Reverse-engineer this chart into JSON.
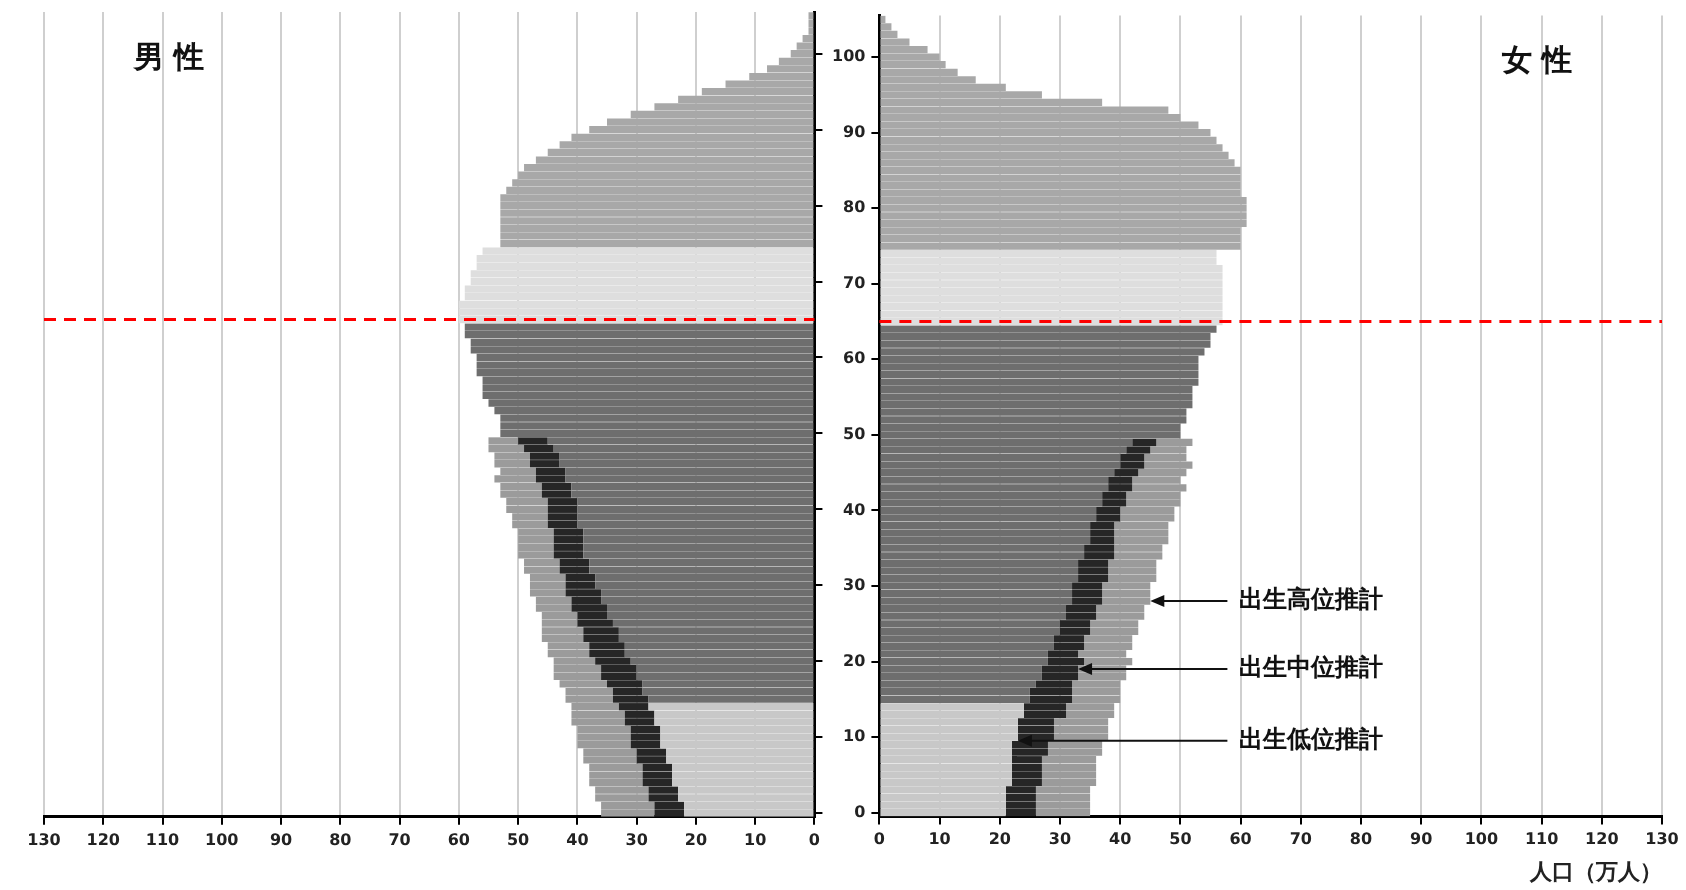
{
  "chart_data": [
    {
      "type": "bar",
      "orientation": "horizontal",
      "stacked": true,
      "title": "男 性",
      "grid": "x",
      "tick_labels": "x",
      "xlim": [
        130,
        0
      ],
      "xticks": [
        130,
        120,
        110,
        100,
        90,
        80,
        70,
        60,
        50,
        40,
        30,
        20,
        10,
        0
      ],
      "ylim": [
        -0.5,
        105.5
      ],
      "yticks": [
        0,
        10,
        20,
        30,
        40,
        50,
        60,
        70,
        80,
        90,
        100
      ],
      "x": [
        0,
        1,
        2,
        3,
        4,
        5,
        6,
        7,
        8,
        9,
        10,
        11,
        12,
        13,
        14,
        15,
        16,
        17,
        18,
        19,
        20,
        21,
        22,
        23,
        24,
        25,
        26,
        27,
        28,
        29,
        30,
        31,
        32,
        33,
        34,
        35,
        36,
        37,
        38,
        39,
        40,
        41,
        42,
        43,
        44,
        45,
        46,
        47,
        48,
        49,
        50,
        51,
        52,
        53,
        54,
        55,
        56,
        57,
        58,
        59,
        60,
        61,
        62,
        63,
        64,
        65,
        66,
        67,
        68,
        69,
        70,
        71,
        72,
        73,
        74,
        75,
        76,
        77,
        78,
        79,
        80,
        81,
        82,
        83,
        84,
        85,
        86,
        87,
        88,
        89,
        90,
        91,
        92,
        93,
        94,
        95,
        96,
        97,
        98,
        99,
        100,
        101,
        102,
        103,
        104,
        105
      ],
      "ref_lines": [
        {
          "axis": "y",
          "value": 65,
          "color": "#ff0000",
          "line_style": "dashed"
        }
      ],
      "series": [
        {
          "values": [
            22,
            22,
            23,
            23,
            24,
            24,
            24,
            25,
            25,
            26,
            26,
            26,
            27,
            27,
            28,
            28,
            29,
            29,
            30,
            30,
            31,
            32,
            32,
            33,
            33,
            34,
            35,
            35,
            36,
            36,
            37,
            37,
            38,
            38,
            39,
            39,
            39,
            39,
            40,
            40,
            40,
            40,
            41,
            41,
            42,
            42,
            43,
            43,
            44,
            45,
            53,
            53,
            53,
            54,
            55,
            56,
            56,
            56,
            57,
            57,
            57,
            58,
            58,
            59,
            59,
            60,
            60,
            60,
            59,
            59,
            58,
            58,
            57,
            57,
            56,
            53,
            53,
            53,
            53,
            53,
            53,
            53,
            52,
            51,
            50,
            49,
            47,
            45,
            43,
            41,
            38,
            35,
            31,
            27,
            23,
            19,
            15,
            11,
            8,
            6,
            4,
            3,
            2,
            1,
            1,
            1
          ],
          "colors": [
            "#c8c8c8",
            "#c8c8c8",
            "#c8c8c8",
            "#c8c8c8",
            "#c8c8c8",
            "#c8c8c8",
            "#c8c8c8",
            "#c8c8c8",
            "#c8c8c8",
            "#c8c8c8",
            "#c8c8c8",
            "#c8c8c8",
            "#c8c8c8",
            "#c8c8c8",
            "#c8c8c8",
            "#6e6e6e",
            "#6e6e6e",
            "#6e6e6e",
            "#6e6e6e",
            "#6e6e6e",
            "#6e6e6e",
            "#6e6e6e",
            "#6e6e6e",
            "#6e6e6e",
            "#6e6e6e",
            "#6e6e6e",
            "#6e6e6e",
            "#6e6e6e",
            "#6e6e6e",
            "#6e6e6e",
            "#6e6e6e",
            "#6e6e6e",
            "#6e6e6e",
            "#6e6e6e",
            "#6e6e6e",
            "#6e6e6e",
            "#6e6e6e",
            "#6e6e6e",
            "#6e6e6e",
            "#6e6e6e",
            "#6e6e6e",
            "#6e6e6e",
            "#6e6e6e",
            "#6e6e6e",
            "#6e6e6e",
            "#6e6e6e",
            "#6e6e6e",
            "#6e6e6e",
            "#6e6e6e",
            "#6e6e6e",
            "#6e6e6e",
            "#6e6e6e",
            "#6e6e6e",
            "#6e6e6e",
            "#6e6e6e",
            "#6e6e6e",
            "#6e6e6e",
            "#6e6e6e",
            "#6e6e6e",
            "#6e6e6e",
            "#6e6e6e",
            "#6e6e6e",
            "#6e6e6e",
            "#6e6e6e",
            "#6e6e6e",
            "#dedede",
            "#dedede",
            "#dedede",
            "#dedede",
            "#dedede",
            "#dedede",
            "#dedede",
            "#dedede",
            "#dedede",
            "#dedede",
            "#a8a8a8",
            "#a8a8a8",
            "#a8a8a8",
            "#a8a8a8",
            "#a8a8a8",
            "#a8a8a8",
            "#a8a8a8",
            "#a8a8a8",
            "#a8a8a8",
            "#a8a8a8",
            "#a8a8a8",
            "#a8a8a8",
            "#a8a8a8",
            "#a8a8a8",
            "#a8a8a8",
            "#a8a8a8",
            "#a8a8a8",
            "#a8a8a8",
            "#a8a8a8",
            "#a8a8a8",
            "#a8a8a8",
            "#a8a8a8",
            "#a8a8a8",
            "#a8a8a8",
            "#a8a8a8",
            "#a8a8a8",
            "#a8a8a8",
            "#a8a8a8",
            "#a8a8a8",
            "#a8a8a8",
            "#a8a8a8"
          ]
        },
        {
          "color": "#262626",
          "x": [
            0,
            1,
            2,
            3,
            4,
            5,
            6,
            7,
            8,
            9,
            10,
            11,
            12,
            13,
            14,
            15,
            16,
            17,
            18,
            19,
            20,
            21,
            22,
            23,
            24,
            25,
            26,
            27,
            28,
            29,
            30,
            31,
            32,
            33,
            34,
            35,
            36,
            37,
            38,
            39,
            40,
            41,
            42,
            43,
            44,
            45,
            46,
            47,
            48,
            49
          ],
          "values": [
            5,
            5,
            5,
            5,
            5,
            5,
            5,
            5,
            5,
            5,
            5,
            5,
            5,
            5,
            5,
            6,
            5,
            6,
            6,
            6,
            6,
            6,
            6,
            6,
            6,
            6,
            5,
            6,
            5,
            6,
            5,
            5,
            5,
            5,
            5,
            5,
            5,
            5,
            5,
            5,
            5,
            5,
            5,
            5,
            5,
            5,
            5,
            5,
            5,
            5
          ]
        },
        {
          "color": "#9b9b9b",
          "x": [
            0,
            1,
            2,
            3,
            4,
            5,
            6,
            7,
            8,
            9,
            10,
            11,
            12,
            13,
            14,
            15,
            16,
            17,
            18,
            19,
            20,
            21,
            22,
            23,
            24,
            25,
            26,
            27,
            28,
            29,
            30,
            31,
            32,
            33,
            34,
            35,
            36,
            37,
            38,
            39,
            40,
            41,
            42,
            43,
            44,
            45,
            46,
            47,
            48,
            49
          ],
          "values": [
            9,
            9,
            9,
            9,
            9,
            9,
            9,
            9,
            9,
            9,
            9,
            9,
            9,
            9,
            8,
            8,
            8,
            8,
            8,
            8,
            7,
            7,
            7,
            7,
            7,
            6,
            6,
            6,
            6,
            6,
            6,
            6,
            6,
            6,
            6,
            6,
            6,
            6,
            6,
            6,
            7,
            7,
            7,
            7,
            7,
            6,
            6,
            6,
            6,
            5
          ]
        }
      ]
    },
    {
      "type": "bar",
      "orientation": "horizontal",
      "stacked": true,
      "title": "女 性",
      "grid": "x",
      "xlabel": "人口（万人）",
      "xlim": [
        0,
        130
      ],
      "xticks": [
        0,
        10,
        20,
        30,
        40,
        50,
        60,
        70,
        80,
        90,
        100,
        110,
        120,
        130
      ],
      "ylim": [
        -0.5,
        105.5
      ],
      "yticks": [
        0,
        10,
        20,
        30,
        40,
        50,
        60,
        70,
        80,
        90,
        100
      ],
      "x": [
        0,
        1,
        2,
        3,
        4,
        5,
        6,
        7,
        8,
        9,
        10,
        11,
        12,
        13,
        14,
        15,
        16,
        17,
        18,
        19,
        20,
        21,
        22,
        23,
        24,
        25,
        26,
        27,
        28,
        29,
        30,
        31,
        32,
        33,
        34,
        35,
        36,
        37,
        38,
        39,
        40,
        41,
        42,
        43,
        44,
        45,
        46,
        47,
        48,
        49,
        50,
        51,
        52,
        53,
        54,
        55,
        56,
        57,
        58,
        59,
        60,
        61,
        62,
        63,
        64,
        65,
        66,
        67,
        68,
        69,
        70,
        71,
        72,
        73,
        74,
        75,
        76,
        77,
        78,
        79,
        80,
        81,
        82,
        83,
        84,
        85,
        86,
        87,
        88,
        89,
        90,
        91,
        92,
        93,
        94,
        95,
        96,
        97,
        98,
        99,
        100,
        101,
        102,
        103,
        104,
        105
      ],
      "ref_lines": [
        {
          "axis": "y",
          "value": 65,
          "color": "#ff0000",
          "line_style": "dashed"
        }
      ],
      "annotations": [
        {
          "text": "出生高位推計",
          "x": 45,
          "y": 28
        },
        {
          "text": "出生中位推計",
          "x": 33,
          "y": 19
        },
        {
          "text": "出生低位推計",
          "x": 23,
          "y": 9.5
        }
      ],
      "series": [
        {
          "values": [
            21,
            21,
            21,
            21,
            22,
            22,
            22,
            22,
            22,
            22,
            23,
            23,
            23,
            24,
            24,
            25,
            25,
            26,
            27,
            27,
            28,
            28,
            29,
            29,
            30,
            30,
            31,
            31,
            32,
            32,
            32,
            33,
            33,
            33,
            34,
            34,
            35,
            35,
            35,
            36,
            36,
            37,
            37,
            38,
            38,
            39,
            40,
            40,
            41,
            42,
            50,
            50,
            51,
            51,
            52,
            52,
            52,
            53,
            53,
            53,
            53,
            54,
            55,
            55,
            56,
            57,
            57,
            57,
            57,
            57,
            57,
            57,
            57,
            56,
            56,
            60,
            60,
            60,
            61,
            61,
            61,
            61,
            60,
            60,
            60,
            60,
            59,
            58,
            57,
            56,
            55,
            53,
            50,
            48,
            37,
            27,
            21,
            16,
            13,
            11,
            10,
            8,
            5,
            3,
            2,
            1
          ],
          "colors": [
            "#c8c8c8",
            "#c8c8c8",
            "#c8c8c8",
            "#c8c8c8",
            "#c8c8c8",
            "#c8c8c8",
            "#c8c8c8",
            "#c8c8c8",
            "#c8c8c8",
            "#c8c8c8",
            "#c8c8c8",
            "#c8c8c8",
            "#c8c8c8",
            "#c8c8c8",
            "#c8c8c8",
            "#6e6e6e",
            "#6e6e6e",
            "#6e6e6e",
            "#6e6e6e",
            "#6e6e6e",
            "#6e6e6e",
            "#6e6e6e",
            "#6e6e6e",
            "#6e6e6e",
            "#6e6e6e",
            "#6e6e6e",
            "#6e6e6e",
            "#6e6e6e",
            "#6e6e6e",
            "#6e6e6e",
            "#6e6e6e",
            "#6e6e6e",
            "#6e6e6e",
            "#6e6e6e",
            "#6e6e6e",
            "#6e6e6e",
            "#6e6e6e",
            "#6e6e6e",
            "#6e6e6e",
            "#6e6e6e",
            "#6e6e6e",
            "#6e6e6e",
            "#6e6e6e",
            "#6e6e6e",
            "#6e6e6e",
            "#6e6e6e",
            "#6e6e6e",
            "#6e6e6e",
            "#6e6e6e",
            "#6e6e6e",
            "#6e6e6e",
            "#6e6e6e",
            "#6e6e6e",
            "#6e6e6e",
            "#6e6e6e",
            "#6e6e6e",
            "#6e6e6e",
            "#6e6e6e",
            "#6e6e6e",
            "#6e6e6e",
            "#6e6e6e",
            "#6e6e6e",
            "#6e6e6e",
            "#6e6e6e",
            "#6e6e6e",
            "#dedede",
            "#dedede",
            "#dedede",
            "#dedede",
            "#dedede",
            "#dedede",
            "#dedede",
            "#dedede",
            "#dedede",
            "#dedede",
            "#a8a8a8",
            "#a8a8a8",
            "#a8a8a8",
            "#a8a8a8",
            "#a8a8a8",
            "#a8a8a8",
            "#a8a8a8",
            "#a8a8a8",
            "#a8a8a8",
            "#a8a8a8",
            "#a8a8a8",
            "#a8a8a8",
            "#a8a8a8",
            "#a8a8a8",
            "#a8a8a8",
            "#a8a8a8",
            "#a8a8a8",
            "#a8a8a8",
            "#a8a8a8",
            "#a8a8a8",
            "#a8a8a8",
            "#a8a8a8",
            "#a8a8a8",
            "#a8a8a8",
            "#a8a8a8",
            "#a8a8a8",
            "#a8a8a8",
            "#a8a8a8",
            "#a8a8a8",
            "#a8a8a8",
            "#a8a8a8"
          ]
        },
        {
          "color": "#262626",
          "x": [
            0,
            1,
            2,
            3,
            4,
            5,
            6,
            7,
            8,
            9,
            10,
            11,
            12,
            13,
            14,
            15,
            16,
            17,
            18,
            19,
            20,
            21,
            22,
            23,
            24,
            25,
            26,
            27,
            28,
            29,
            30,
            31,
            32,
            33,
            34,
            35,
            36,
            37,
            38,
            39,
            40,
            41,
            42,
            43,
            44,
            45,
            46,
            47,
            48,
            49
          ],
          "values": [
            5,
            5,
            5,
            5,
            5,
            5,
            5,
            5,
            6,
            6,
            6,
            6,
            6,
            7,
            7,
            7,
            7,
            6,
            6,
            6,
            6,
            5,
            5,
            5,
            5,
            5,
            5,
            5,
            5,
            5,
            5,
            5,
            5,
            5,
            5,
            5,
            4,
            4,
            4,
            4,
            4,
            4,
            4,
            4,
            4,
            4,
            4,
            4,
            4,
            4
          ]
        },
        {
          "color": "#9b9b9b",
          "x": [
            0,
            1,
            2,
            3,
            4,
            5,
            6,
            7,
            8,
            9,
            10,
            11,
            12,
            13,
            14,
            15,
            16,
            17,
            18,
            19,
            20,
            21,
            22,
            23,
            24,
            25,
            26,
            27,
            28,
            29,
            30,
            31,
            32,
            33,
            34,
            35,
            36,
            37,
            38,
            39,
            40,
            41,
            42,
            43,
            44,
            45,
            46,
            47,
            48,
            49
          ],
          "values": [
            9,
            9,
            9,
            9,
            9,
            9,
            9,
            9,
            9,
            9,
            9,
            9,
            9,
            8,
            8,
            8,
            8,
            8,
            8,
            8,
            8,
            8,
            8,
            8,
            8,
            8,
            8,
            8,
            8,
            8,
            8,
            8,
            8,
            8,
            8,
            8,
            9,
            9,
            9,
            9,
            9,
            9,
            9,
            9,
            8,
            8,
            8,
            7,
            6,
            6
          ]
        }
      ]
    }
  ]
}
